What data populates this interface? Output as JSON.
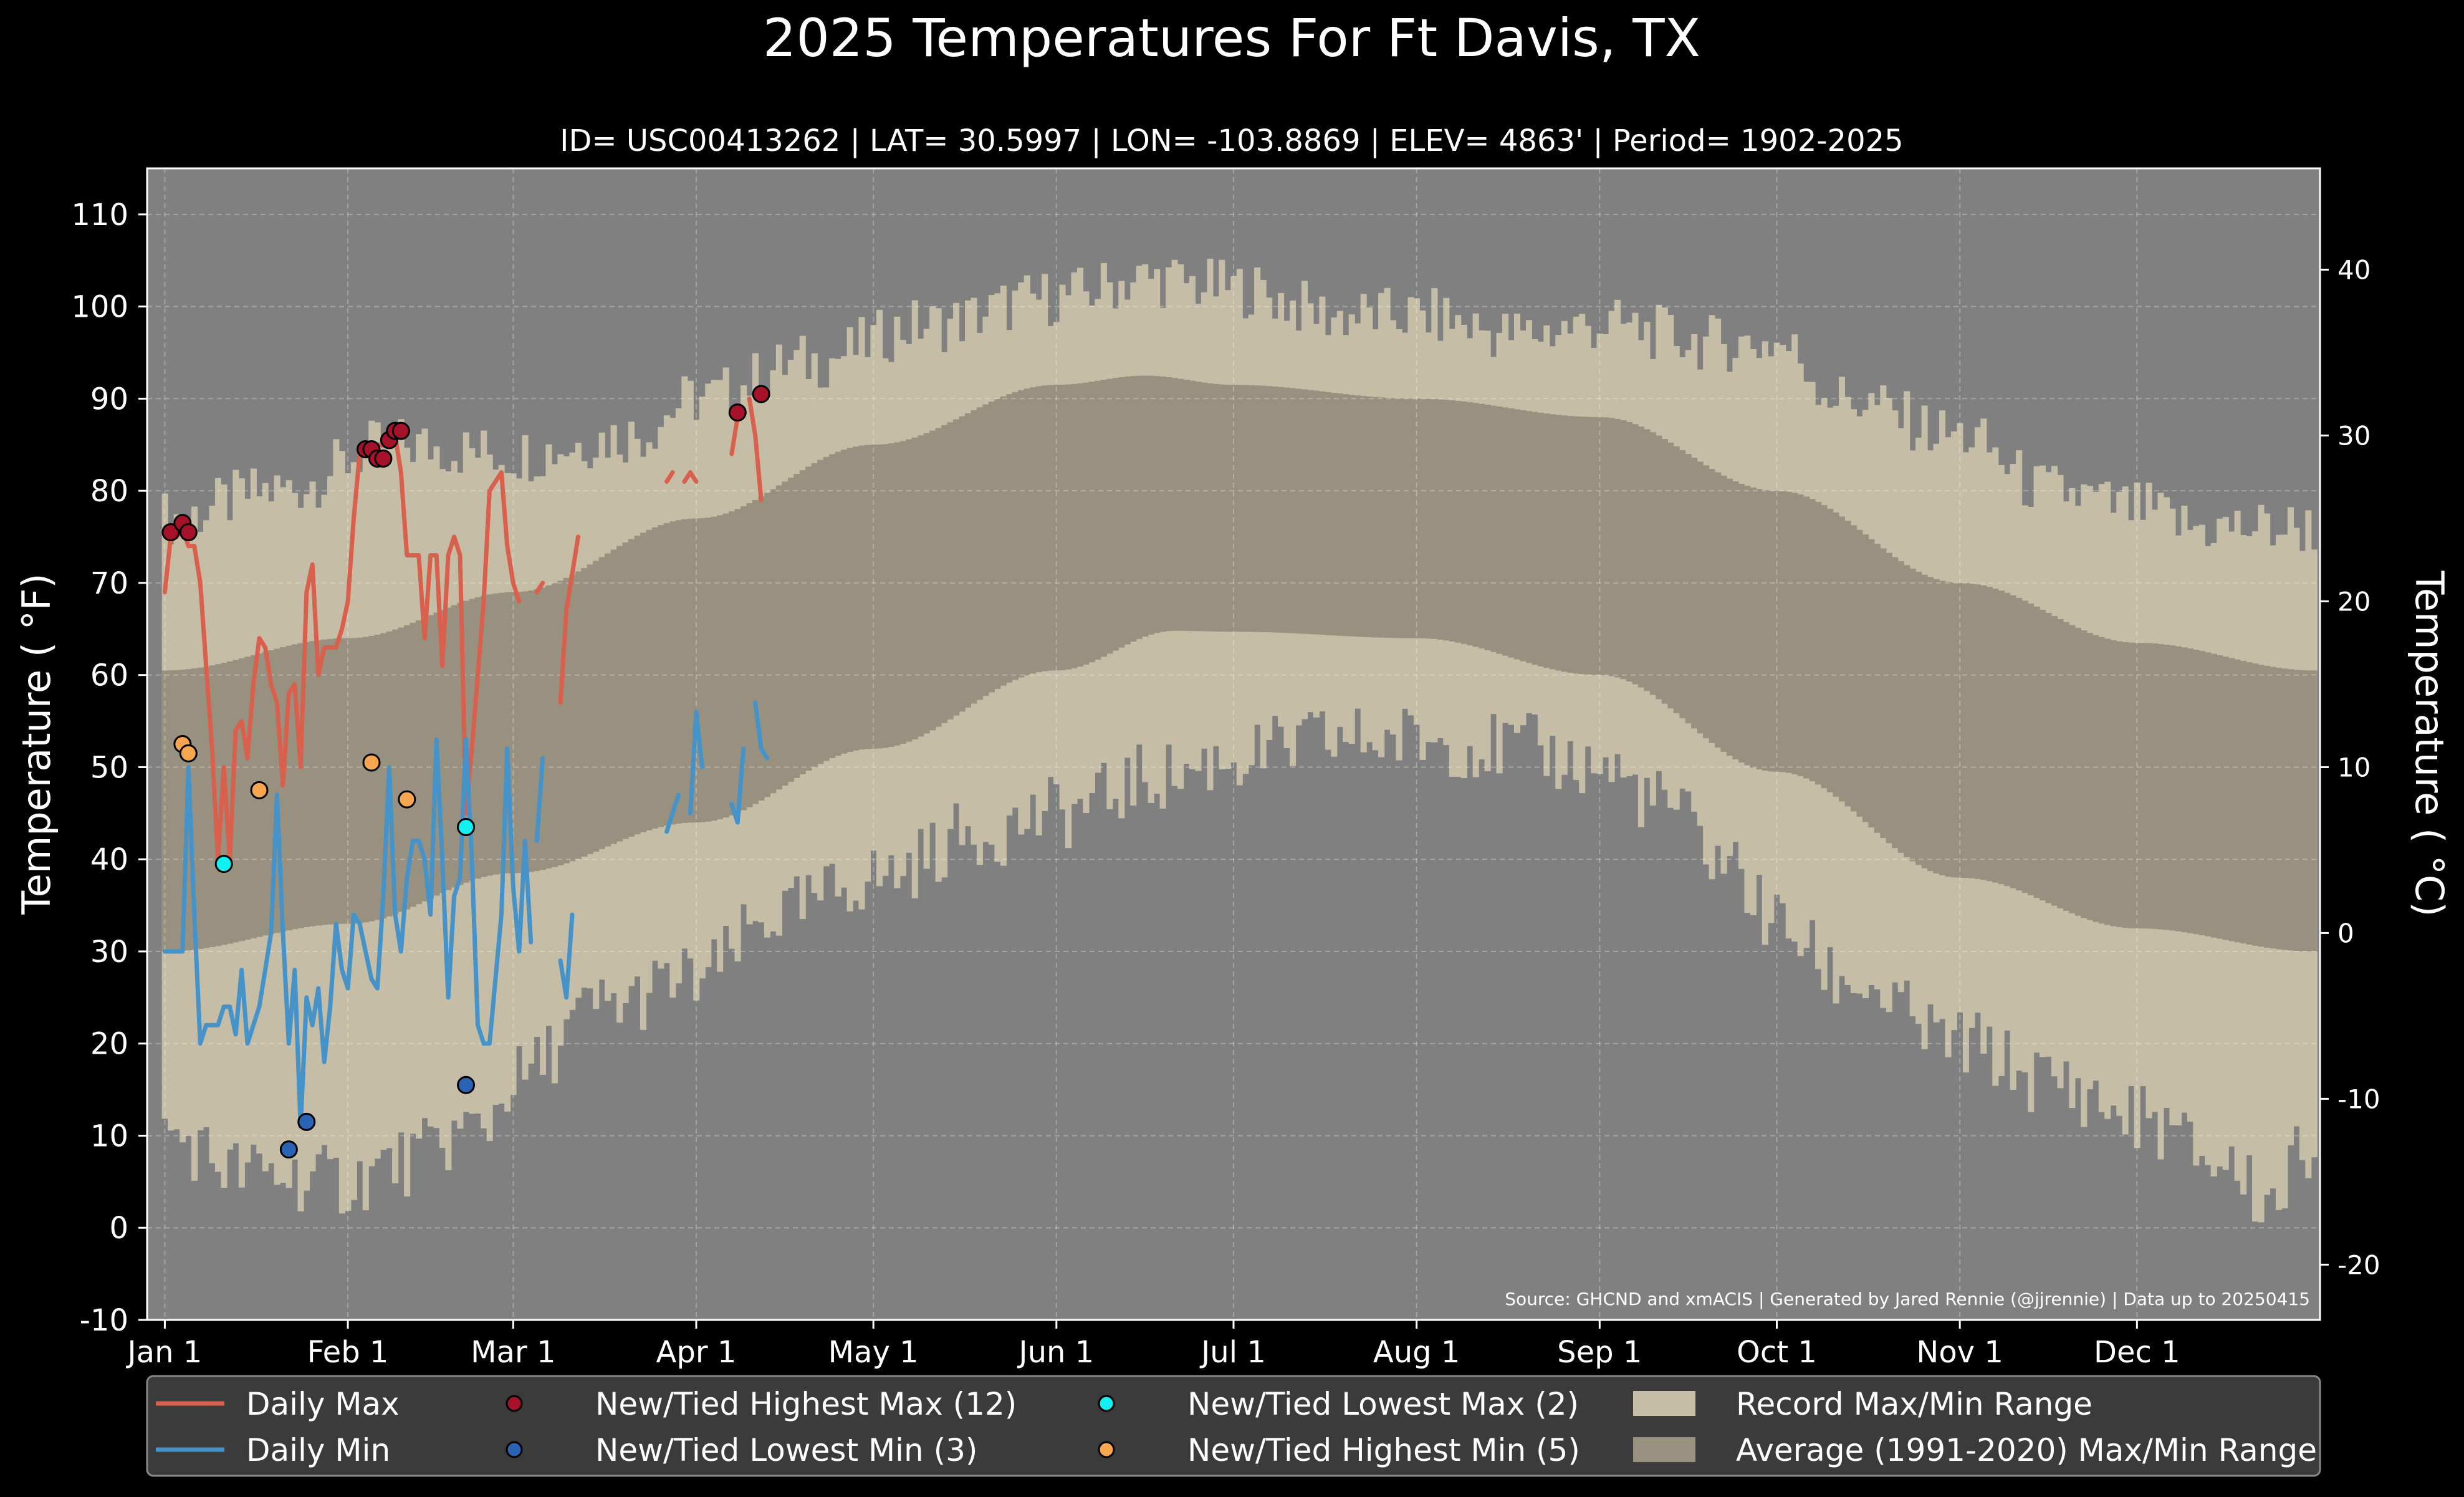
{
  "title": "2025 Temperatures For Ft Davis, TX",
  "subtitle": "ID= USC00413262 | LAT= 30.5997 | LON= -103.8869 | ELEV= 4863' | Period= 1902-2025",
  "source": "Source: GHCND and xmACIS | Generated by Jared Rennie (@jjrennie) | Data up to 20250415",
  "colors": {
    "background": "#000000",
    "plot_bg": "#808080",
    "record_range": "#c5bda6",
    "normal_range": "#999180",
    "daily_max": "#d9604c",
    "daily_min": "#4593c8",
    "new_high_max": "#a5122a",
    "new_low_min": "#2a63b3",
    "new_low_max": "#11f0f0",
    "new_high_min": "#f7a54f",
    "legend_bg": "#3b3b3b"
  },
  "chart_data": {
    "type": "line",
    "title": "2025 Temperatures For Ft Davis, TX",
    "xlabel": "",
    "ylabel": "Temperature ( °F)",
    "ylabel_right": "Temperature ( °C)",
    "ylim": [
      -10,
      115
    ],
    "xlim_day_of_year": [
      -2,
      366
    ],
    "yticks": [
      -10,
      0,
      10,
      20,
      30,
      40,
      50,
      60,
      70,
      80,
      90,
      100,
      110
    ],
    "yticks_right_c": [
      -20,
      -10,
      0,
      10,
      20,
      30,
      40
    ],
    "xtick_labels": [
      "Jan 1",
      "Feb 1",
      "Mar 1",
      "Apr 1",
      "May 1",
      "Jun 1",
      "Jul 1",
      "Aug 1",
      "Sep 1",
      "Oct 1",
      "Nov 1",
      "Dec 1"
    ],
    "xtick_days": [
      1,
      32,
      60,
      91,
      121,
      152,
      182,
      213,
      244,
      274,
      305,
      335
    ],
    "grid": true,
    "legend_position": "bottom",
    "legend": [
      {
        "label": "Daily Max",
        "kind": "line",
        "color_key": "daily_max"
      },
      {
        "label": "Daily Min",
        "kind": "line",
        "color_key": "daily_min"
      },
      {
        "label": "New/Tied Highest Max (12)",
        "kind": "dot",
        "color_key": "new_high_max"
      },
      {
        "label": "New/Tied Lowest Min (3)",
        "kind": "dot",
        "color_key": "new_low_min"
      },
      {
        "label": "New/Tied Lowest Max (2)",
        "kind": "dot",
        "color_key": "new_low_max"
      },
      {
        "label": "New/Tied Highest Min (5)",
        "kind": "dot",
        "color_key": "new_high_min"
      },
      {
        "label": "Record Max/Min Range",
        "kind": "patch",
        "color_key": "record_range"
      },
      {
        "label": "Average (1991-2020) Max/Min Range",
        "kind": "patch",
        "color_key": "normal_range"
      }
    ],
    "normal_max_anchors": [
      [
        1,
        60.5
      ],
      [
        32,
        64
      ],
      [
        60,
        69
      ],
      [
        91,
        77
      ],
      [
        121,
        85
      ],
      [
        152,
        91.5
      ],
      [
        167,
        92.5
      ],
      [
        182,
        91.5
      ],
      [
        213,
        90
      ],
      [
        244,
        88
      ],
      [
        274,
        80
      ],
      [
        305,
        70
      ],
      [
        335,
        63.5
      ],
      [
        365,
        60.5
      ]
    ],
    "normal_min_anchors": [
      [
        1,
        30
      ],
      [
        32,
        33
      ],
      [
        60,
        38.5
      ],
      [
        91,
        44
      ],
      [
        121,
        52
      ],
      [
        152,
        60.5
      ],
      [
        172,
        64.8
      ],
      [
        182,
        64.7
      ],
      [
        213,
        64
      ],
      [
        244,
        60
      ],
      [
        274,
        49.5
      ],
      [
        305,
        38
      ],
      [
        335,
        32.5
      ],
      [
        365,
        30
      ]
    ],
    "record_max_anchors": [
      [
        1,
        77
      ],
      [
        20,
        80
      ],
      [
        40,
        85
      ],
      [
        60,
        84
      ],
      [
        80,
        86
      ],
      [
        91,
        90
      ],
      [
        110,
        94
      ],
      [
        130,
        98
      ],
      [
        152,
        101
      ],
      [
        167,
        103
      ],
      [
        182,
        102
      ],
      [
        200,
        99
      ],
      [
        213,
        99
      ],
      [
        230,
        97
      ],
      [
        244,
        98
      ],
      [
        265,
        96
      ],
      [
        274,
        96
      ],
      [
        285,
        90
      ],
      [
        305,
        86
      ],
      [
        320,
        80
      ],
      [
        335,
        78
      ],
      [
        345,
        76
      ],
      [
        365,
        76
      ]
    ],
    "record_min_anchors": [
      [
        1,
        10
      ],
      [
        15,
        6
      ],
      [
        32,
        5
      ],
      [
        40,
        7
      ],
      [
        55,
        11
      ],
      [
        60,
        16
      ],
      [
        75,
        24
      ],
      [
        91,
        27
      ],
      [
        105,
        34
      ],
      [
        121,
        38
      ],
      [
        140,
        43
      ],
      [
        152,
        45
      ],
      [
        170,
        49
      ],
      [
        182,
        51
      ],
      [
        200,
        53
      ],
      [
        213,
        53
      ],
      [
        230,
        52
      ],
      [
        244,
        50
      ],
      [
        255,
        46
      ],
      [
        265,
        40
      ],
      [
        274,
        33
      ],
      [
        285,
        27
      ],
      [
        305,
        20
      ],
      [
        320,
        16
      ],
      [
        335,
        12
      ],
      [
        350,
        7
      ],
      [
        357,
        3
      ],
      [
        365,
        9
      ]
    ],
    "series": [
      {
        "name": "Daily Max",
        "segments": [
          {
            "start_day": 1,
            "values": [
              69,
              75,
              75,
              76,
              74,
              74,
              70,
              61,
              52,
              40,
              50,
              40,
              54,
              55,
              51,
              59,
              64,
              63,
              59,
              57,
              48,
              58,
              59,
              50,
              69,
              72,
              60,
              63,
              63,
              63,
              65,
              68,
              77,
              84,
              84,
              85,
              85,
              85,
              86,
              86,
              82,
              73,
              73,
              73,
              64,
              73,
              73,
              61,
              73,
              75,
              73,
              45,
              52,
              60,
              68,
              80,
              81,
              82,
              74,
              70,
              68
            ]
          },
          {
            "start_day": 64,
            "values": [
              69,
              70
            ]
          },
          {
            "start_day": 68,
            "values": [
              57,
              67,
              71,
              75
            ]
          },
          {
            "start_day": 86,
            "values": [
              81,
              82
            ]
          },
          {
            "start_day": 89,
            "values": [
              81,
              82,
              81
            ]
          },
          {
            "start_day": 97,
            "values": [
              84,
              88
            ]
          },
          {
            "start_day": 100,
            "values": [
              90,
              86,
              79
            ]
          }
        ]
      },
      {
        "name": "Daily Min",
        "segments": [
          {
            "start_day": 1,
            "values": [
              30,
              30,
              30,
              30,
              50,
              34,
              20,
              22,
              22,
              22,
              24,
              24,
              21,
              28,
              20,
              22,
              24,
              28,
              32,
              47,
              32,
              20,
              28,
              11,
              25,
              22,
              26,
              18,
              24,
              33,
              28,
              26,
              34,
              33,
              30,
              27,
              26,
              36,
              50,
              34,
              30,
              38,
              42,
              42,
              40,
              34,
              53,
              40,
              25,
              36,
              38,
              53,
              40,
              22,
              20,
              20,
              27,
              34,
              52,
              37,
              30,
              42,
              31
            ]
          },
          {
            "start_day": 64,
            "values": [
              42,
              51
            ]
          },
          {
            "start_day": 68,
            "values": [
              29,
              25,
              34
            ]
          },
          {
            "start_day": 86,
            "values": [
              43,
              45,
              47
            ]
          },
          {
            "start_day": 90,
            "values": [
              45,
              56,
              50
            ]
          },
          {
            "start_day": 97,
            "values": [
              46,
              44,
              52
            ]
          },
          {
            "start_day": 101,
            "values": [
              57,
              52,
              51
            ]
          }
        ]
      }
    ],
    "markers": [
      {
        "series": "New/Tied Highest Max (12)",
        "color_key": "new_high_max",
        "points": [
          [
            2,
            75.5
          ],
          [
            4,
            76.5
          ],
          [
            5,
            75.5
          ],
          [
            35,
            84.5
          ],
          [
            36,
            84.5
          ],
          [
            37,
            83.5
          ],
          [
            38,
            83.5
          ],
          [
            39,
            85.5
          ],
          [
            40,
            86.5
          ],
          [
            41,
            86.5
          ],
          [
            98,
            88.5
          ],
          [
            102,
            90.5
          ]
        ]
      },
      {
        "series": "New/Tied Lowest Min (3)",
        "color_key": "new_low_min",
        "points": [
          [
            22,
            8.5
          ],
          [
            25,
            11.5
          ],
          [
            52,
            15.5
          ]
        ]
      },
      {
        "series": "New/Tied Lowest Max (2)",
        "color_key": "new_low_max",
        "points": [
          [
            11,
            39.5
          ],
          [
            52,
            43.5
          ]
        ]
      },
      {
        "series": "New/Tied Highest Min (5)",
        "color_key": "new_high_min",
        "points": [
          [
            4,
            52.5
          ],
          [
            5,
            51.5
          ],
          [
            17,
            47.5
          ],
          [
            36,
            50.5
          ],
          [
            42,
            46.5
          ]
        ]
      }
    ]
  }
}
